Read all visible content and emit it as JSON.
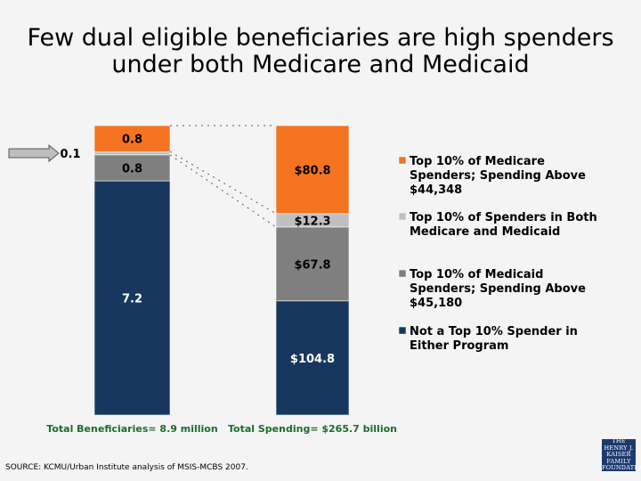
{
  "title": {
    "line1": "Few dual eligible beneficiaries are high spenders",
    "line2": "under both Medicare and Medicaid"
  },
  "chart_data": {
    "type": "bar",
    "stacked": true,
    "categories": [
      "Total Beneficiaries= 8.9 million",
      "Total Spending= $265.7 billion"
    ],
    "series": [
      {
        "name": "Not a Top 10% Spender in Either Program",
        "color": "#17375e",
        "values": [
          7.2,
          104.8
        ],
        "labels": [
          "7.2",
          "$104.8"
        ]
      },
      {
        "name": "Top 10% of Medicaid Spenders; Spending Above $45,180",
        "color": "#7f7f7f",
        "values": [
          0.8,
          67.8
        ],
        "labels": [
          "0.8",
          "$67.8"
        ]
      },
      {
        "name": "Top 10% of Spenders in Both Medicare and Medicaid",
        "color": "#bfbfbf",
        "values": [
          0.1,
          12.3
        ],
        "labels": [
          "0.1",
          "$12.3"
        ]
      },
      {
        "name": "Top 10% of Medicare Spenders; Spending Above $44,348",
        "color": "#f47321",
        "values": [
          0.8,
          80.8
        ],
        "labels": [
          "0.8",
          "$80.8"
        ]
      }
    ],
    "legend_order": [
      3,
      2,
      1,
      0
    ],
    "legend_lines": [
      [
        "Top 10% of Medicare",
        "Spenders; Spending Above",
        "$44,348"
      ],
      [
        "Top 10% of Spenders in Both",
        "Medicare and Medicaid"
      ],
      [
        "Top 10% of Medicaid",
        "Spenders; Spending Above",
        "$45,180"
      ],
      [
        "Not a Top 10% Spender in",
        "Either Program"
      ]
    ],
    "legend_position": "right",
    "grid": false
  },
  "source": "SOURCE: KCMU/Urban Institute analysis of MSIS-MCBS 2007.",
  "logo": {
    "lines": [
      "THE HENRY J.",
      "KAISER",
      "FAMILY",
      "FOUNDATION"
    ]
  }
}
